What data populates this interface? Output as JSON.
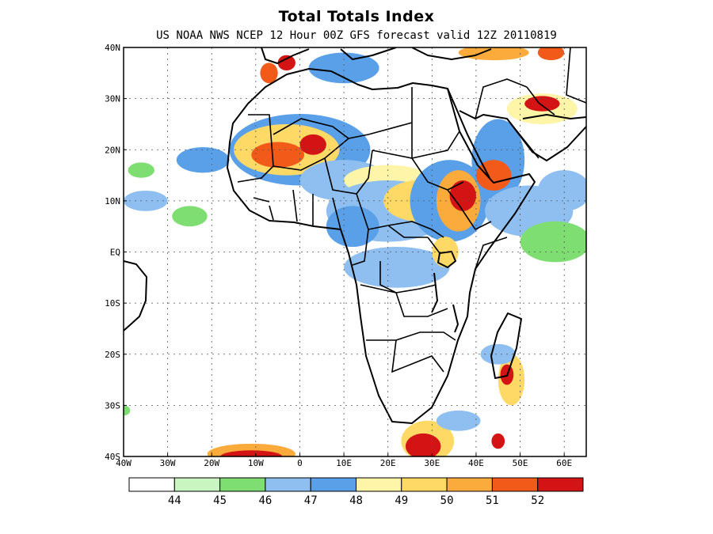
{
  "title": "Total Totals Index",
  "subtitle": "US NOAA NWS NCEP 12 Hour 00Z GFS forecast valid 12Z 20110819",
  "map": {
    "lon_range": [
      -40,
      65
    ],
    "lat_range": [
      -40,
      40
    ],
    "lon_ticks": [
      {
        "value": -40,
        "label": "40W"
      },
      {
        "value": -30,
        "label": "30W"
      },
      {
        "value": -20,
        "label": "20W"
      },
      {
        "value": -10,
        "label": "10W"
      },
      {
        "value": 0,
        "label": "0"
      },
      {
        "value": 10,
        "label": "10E"
      },
      {
        "value": 20,
        "label": "20E"
      },
      {
        "value": 30,
        "label": "30E"
      },
      {
        "value": 40,
        "label": "40E"
      },
      {
        "value": 50,
        "label": "50E"
      },
      {
        "value": 60,
        "label": "60E"
      }
    ],
    "lat_ticks": [
      {
        "value": 40,
        "label": "40N"
      },
      {
        "value": 30,
        "label": "30N"
      },
      {
        "value": 20,
        "label": "20N"
      },
      {
        "value": 10,
        "label": "10N"
      },
      {
        "value": 0,
        "label": "EQ"
      },
      {
        "value": -10,
        "label": "10S"
      },
      {
        "value": -20,
        "label": "20S"
      },
      {
        "value": -30,
        "label": "30S"
      },
      {
        "value": -40,
        "label": "40S"
      }
    ]
  },
  "colorbar": {
    "colors": [
      "#ffffff",
      "#c8f5c0",
      "#7ede72",
      "#8fbff0",
      "#5aa0e8",
      "#fff5a8",
      "#ffd966",
      "#fbaa3c",
      "#f25a1a",
      "#d41414"
    ],
    "labels": [
      "44",
      "45",
      "46",
      "47",
      "48",
      "49",
      "50",
      "51",
      "52"
    ]
  },
  "regions": [
    {
      "value": 46,
      "lon": -35,
      "lat": 10,
      "rx": 5,
      "ry": 2
    },
    {
      "value": 45,
      "lon": -36,
      "lat": 16,
      "rx": 3,
      "ry": 1.5
    },
    {
      "value": 47,
      "lon": -22,
      "lat": 18,
      "rx": 6,
      "ry": 2.5
    },
    {
      "value": 45,
      "lon": -25,
      "lat": 7,
      "rx": 4,
      "ry": 2
    },
    {
      "value": 47,
      "lon": 0,
      "lat": 20,
      "rx": 16,
      "ry": 7
    },
    {
      "value": 49,
      "lon": -3,
      "lat": 20,
      "rx": 12,
      "ry": 5
    },
    {
      "value": 51,
      "lon": -5,
      "lat": 19,
      "rx": 6,
      "ry": 2.5
    },
    {
      "value": 52,
      "lon": 3,
      "lat": 21,
      "rx": 3,
      "ry": 2
    },
    {
      "value": 46,
      "lon": 10,
      "lat": 14,
      "rx": 10,
      "ry": 4
    },
    {
      "value": 48,
      "lon": 20,
      "lat": 14,
      "rx": 10,
      "ry": 3
    },
    {
      "value": 46,
      "lon": 20,
      "lat": 8,
      "rx": 14,
      "ry": 6
    },
    {
      "value": 49,
      "lon": 27,
      "lat": 10,
      "rx": 8,
      "ry": 4
    },
    {
      "value": 47,
      "lon": 12,
      "lat": 5,
      "rx": 6,
      "ry": 4
    },
    {
      "value": 46,
      "lon": 22,
      "lat": -3,
      "rx": 12,
      "ry": 4
    },
    {
      "value": 47,
      "lon": 34,
      "lat": 10,
      "rx": 9,
      "ry": 8
    },
    {
      "value": 50,
      "lon": 36,
      "lat": 10,
      "rx": 5,
      "ry": 6
    },
    {
      "value": 52,
      "lon": 37,
      "lat": 11,
      "rx": 3,
      "ry": 3
    },
    {
      "value": 47,
      "lon": 45,
      "lat": 18,
      "rx": 6,
      "ry": 8
    },
    {
      "value": 51,
      "lon": 44,
      "lat": 15,
      "rx": 4,
      "ry": 3
    },
    {
      "value": 49,
      "lon": 33,
      "lat": 0,
      "rx": 3,
      "ry": 3
    },
    {
      "value": 46,
      "lon": 52,
      "lat": 8,
      "rx": 10,
      "ry": 5
    },
    {
      "value": 45,
      "lon": 58,
      "lat": 2,
      "rx": 8,
      "ry": 4
    },
    {
      "value": 46,
      "lon": 60,
      "lat": 12,
      "rx": 6,
      "ry": 4
    },
    {
      "value": 48,
      "lon": 55,
      "lat": 28,
      "rx": 8,
      "ry": 3
    },
    {
      "value": 52,
      "lon": 55,
      "lat": 29,
      "rx": 4,
      "ry": 1.5
    },
    {
      "value": 47,
      "lon": 10,
      "lat": 36,
      "rx": 8,
      "ry": 3
    },
    {
      "value": 51,
      "lon": -7,
      "lat": 35,
      "rx": 2,
      "ry": 2
    },
    {
      "value": 52,
      "lon": -3,
      "lat": 37,
      "rx": 2,
      "ry": 1.5
    },
    {
      "value": 50,
      "lon": 44,
      "lat": 39,
      "rx": 8,
      "ry": 1.5
    },
    {
      "value": 51,
      "lon": 57,
      "lat": 39,
      "rx": 3,
      "ry": 1.5
    },
    {
      "value": 49,
      "lon": 48,
      "lat": -25,
      "rx": 3,
      "ry": 5
    },
    {
      "value": 52,
      "lon": 47,
      "lat": -24,
      "rx": 1.5,
      "ry": 2
    },
    {
      "value": 46,
      "lon": 45,
      "lat": -20,
      "rx": 4,
      "ry": 2
    },
    {
      "value": 52,
      "lon": 45,
      "lat": -37,
      "rx": 1.5,
      "ry": 1.5
    },
    {
      "value": 50,
      "lon": -11,
      "lat": -39.5,
      "rx": 10,
      "ry": 2
    },
    {
      "value": 52,
      "lon": -11,
      "lat": -40,
      "rx": 7,
      "ry": 1.2
    },
    {
      "value": 49,
      "lon": 29,
      "lat": -37,
      "rx": 6,
      "ry": 4
    },
    {
      "value": 52,
      "lon": 28,
      "lat": -38,
      "rx": 4,
      "ry": 2.5
    },
    {
      "value": 46,
      "lon": 36,
      "lat": -33,
      "rx": 5,
      "ry": 2
    },
    {
      "value": 45,
      "lon": -40,
      "lat": -31,
      "rx": 1.5,
      "ry": 1
    }
  ]
}
